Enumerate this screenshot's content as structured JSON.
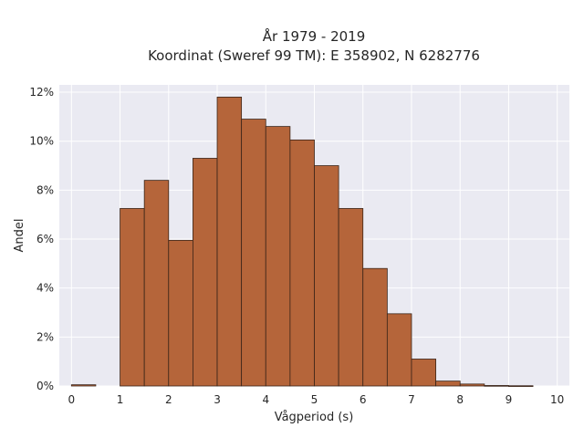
{
  "chart_data": {
    "type": "bar",
    "title_lines": [
      "År 1979 - 2019",
      "Koordinat (Sweref 99 TM): E 358902, N 6282776"
    ],
    "xlabel": "Vågperiod (s)",
    "ylabel": "Andel",
    "xlim": [
      -0.25,
      10.25
    ],
    "ylim": [
      0,
      12.3
    ],
    "x_ticks": [
      0,
      1,
      2,
      3,
      4,
      5,
      6,
      7,
      8,
      9,
      10
    ],
    "x_tick_labels": [
      "0",
      "1",
      "2",
      "3",
      "4",
      "5",
      "6",
      "7",
      "8",
      "9",
      "10"
    ],
    "y_ticks": [
      0,
      2,
      4,
      6,
      8,
      10,
      12
    ],
    "y_tick_labels": [
      "0%",
      "2%",
      "4%",
      "6%",
      "8%",
      "10%",
      "12%"
    ],
    "bin_width": 0.5,
    "bins": [
      {
        "x0": 0.0,
        "value": 0.05
      },
      {
        "x0": 0.5,
        "value": 0.0
      },
      {
        "x0": 1.0,
        "value": 7.25
      },
      {
        "x0": 1.5,
        "value": 8.4
      },
      {
        "x0": 2.0,
        "value": 5.95
      },
      {
        "x0": 2.5,
        "value": 9.3
      },
      {
        "x0": 3.0,
        "value": 11.8
      },
      {
        "x0": 3.5,
        "value": 10.9
      },
      {
        "x0": 4.0,
        "value": 10.6
      },
      {
        "x0": 4.5,
        "value": 10.05
      },
      {
        "x0": 5.0,
        "value": 9.0
      },
      {
        "x0": 5.5,
        "value": 7.25
      },
      {
        "x0": 6.0,
        "value": 4.8
      },
      {
        "x0": 6.5,
        "value": 2.95
      },
      {
        "x0": 7.0,
        "value": 1.1
      },
      {
        "x0": 7.5,
        "value": 0.2
      },
      {
        "x0": 8.0,
        "value": 0.08
      },
      {
        "x0": 8.5,
        "value": 0.02
      },
      {
        "x0": 9.0,
        "value": 0.01
      }
    ],
    "bar_color": "#b5653a",
    "bar_edge_color": "#3a2418",
    "background_color": "#eaeaf2",
    "grid": true,
    "legend": "none"
  }
}
